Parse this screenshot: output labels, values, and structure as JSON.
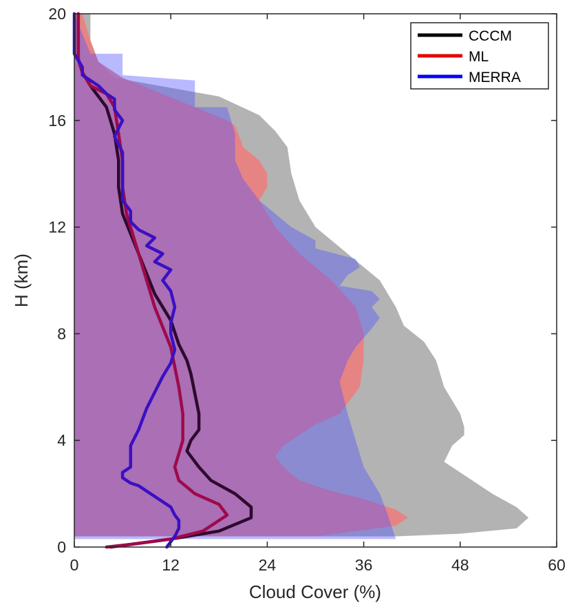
{
  "chart_data": {
    "type": "line",
    "title": "",
    "xlabel": "Cloud Cover (%)",
    "ylabel": "H (km)",
    "xlim": [
      0,
      60
    ],
    "ylim": [
      0,
      20
    ],
    "xticks": [
      "0",
      "12",
      "24",
      "36",
      "48",
      "60"
    ],
    "yticks": [
      "0",
      "4",
      "8",
      "12",
      "16",
      "20"
    ],
    "grid": false,
    "legend_position": "top-right",
    "colors": {
      "CCCM": "#000000",
      "ML": "#e60000",
      "MERRA": "#0000ff"
    },
    "bands": [
      {
        "name": "CCCM",
        "fill": "#a6a6a6",
        "opacity": 0.85,
        "x": [
          2,
          2,
          3,
          5,
          18,
          23,
          25,
          26.5,
          27,
          28,
          30,
          34,
          38,
          40,
          41,
          43.5,
          45,
          46,
          48,
          48.5,
          48.5,
          47,
          46,
          49,
          52,
          55,
          56.5,
          55,
          48,
          40,
          0,
          0,
          0
        ],
        "y": [
          20,
          19,
          18.2,
          17.6,
          16.9,
          16.2,
          15.6,
          15,
          14,
          13,
          12,
          11,
          10,
          9,
          8.3,
          7.7,
          7,
          6,
          5,
          4.5,
          4.2,
          3.8,
          3.2,
          2.6,
          2,
          1.5,
          1.1,
          0.7,
          0.5,
          0.4,
          0.4,
          18,
          20
        ]
      },
      {
        "name": "ML",
        "fill": "#ee7b7b",
        "opacity": 0.85,
        "x": [
          1,
          2,
          3,
          6,
          15,
          19,
          20,
          21,
          23,
          24,
          24,
          23,
          25,
          28,
          32,
          35,
          36,
          36,
          35.5,
          33,
          30,
          28,
          26,
          25,
          26,
          28,
          32,
          36,
          40,
          41.5,
          40,
          35,
          30,
          0,
          0,
          0
        ],
        "y": [
          20,
          19,
          18.2,
          17.6,
          16.5,
          16,
          15.8,
          15,
          14.5,
          14,
          13.5,
          13,
          12,
          11,
          10,
          9,
          8,
          7,
          6,
          5,
          4.6,
          4.2,
          3.8,
          3.4,
          3,
          2.5,
          2.1,
          1.8,
          1.4,
          1.1,
          0.8,
          0.6,
          0.4,
          0.4,
          18,
          20
        ]
      },
      {
        "name": "MERRA",
        "fill": "#4f4fff",
        "opacity": 0.4,
        "x": [
          0,
          2,
          6,
          6,
          15,
          15,
          19,
          20,
          20,
          21,
          22,
          23,
          27,
          30,
          30,
          35,
          35.5,
          34,
          33,
          37,
          38,
          37,
          38,
          37,
          35,
          34,
          33,
          34,
          35,
          36,
          38,
          39,
          40,
          0,
          0
        ],
        "y": [
          20,
          18.5,
          18.5,
          17.7,
          17.5,
          16.5,
          16.5,
          15.5,
          14.5,
          13.8,
          13.4,
          13,
          12,
          11.5,
          11.2,
          10.8,
          10.5,
          10.2,
          9.8,
          9.6,
          9.3,
          9,
          8.6,
          8.2,
          7.5,
          7,
          6.2,
          5,
          4,
          3,
          2,
          1.2,
          0.3,
          0.3,
          20
        ]
      }
    ],
    "series": [
      {
        "name": "CCCM",
        "stroke": "#2e0a2e",
        "x": [
          4.5,
          7,
          12,
          18,
          22,
          22,
          20,
          17,
          15.5,
          14,
          14.5,
          15.5,
          15.5,
          14.5,
          14,
          13,
          12,
          10,
          8,
          6,
          5.5,
          5.5,
          5,
          4,
          2,
          1,
          0.5,
          0.5,
          0.5
        ],
        "y": [
          0,
          0.1,
          0.3,
          0.6,
          1.1,
          1.5,
          2.0,
          2.5,
          3.0,
          3.6,
          4.0,
          4.4,
          5.0,
          6.5,
          7.0,
          7.6,
          8.5,
          9.5,
          11,
          12.5,
          13.5,
          14.5,
          15.5,
          16.5,
          17.3,
          17.8,
          18.3,
          19,
          20
        ]
      },
      {
        "name": "ML",
        "stroke": "#9e0a4a",
        "x": [
          4,
          7,
          12,
          16,
          19,
          18,
          15,
          13,
          12.5,
          13,
          13.5,
          13.5,
          13,
          12,
          10,
          8,
          6.5,
          6,
          6,
          5.5,
          5,
          4,
          2,
          1,
          0.5,
          0.5,
          0.5
        ],
        "y": [
          0,
          0.1,
          0.3,
          0.6,
          1.2,
          1.6,
          2.0,
          2.5,
          3.0,
          3.5,
          4.0,
          5.0,
          6.0,
          7.5,
          9.0,
          11,
          12.5,
          13.5,
          14.5,
          15.5,
          16.5,
          17.0,
          17.3,
          17.8,
          18.3,
          19,
          20
        ]
      },
      {
        "name": "MERRA",
        "stroke": "#3a10c4",
        "x": [
          11.5,
          12.5,
          13,
          13,
          12.5,
          12,
          11,
          10,
          9,
          8,
          7,
          6,
          6,
          7,
          7,
          7,
          7,
          7.5,
          8,
          8.5,
          9,
          10,
          11,
          12,
          12.5,
          12,
          12,
          12.5,
          12,
          11,
          12,
          10,
          11,
          9,
          10,
          8,
          7,
          7,
          6,
          6,
          6,
          6,
          5,
          6,
          5,
          5,
          4,
          3,
          2,
          1,
          1,
          0,
          0,
          0,
          0
        ],
        "y": [
          0,
          0.4,
          0.7,
          1.0,
          1.2,
          1.5,
          1.7,
          1.9,
          2.1,
          2.3,
          2.4,
          2.6,
          2.8,
          3.0,
          3.3,
          3.6,
          3.8,
          4.1,
          4.4,
          4.8,
          5.2,
          5.8,
          6.4,
          6.9,
          7.4,
          8.0,
          8.4,
          9.0,
          9.6,
          10.0,
          10.4,
          10.7,
          11.0,
          11.3,
          11.6,
          11.9,
          12.2,
          12.6,
          13.0,
          13.6,
          14.2,
          14.8,
          15.4,
          16.0,
          16.4,
          16.8,
          17.0,
          17.3,
          17.5,
          17.7,
          18.0,
          18.5,
          19.0,
          19.5,
          20
        ]
      }
    ]
  }
}
